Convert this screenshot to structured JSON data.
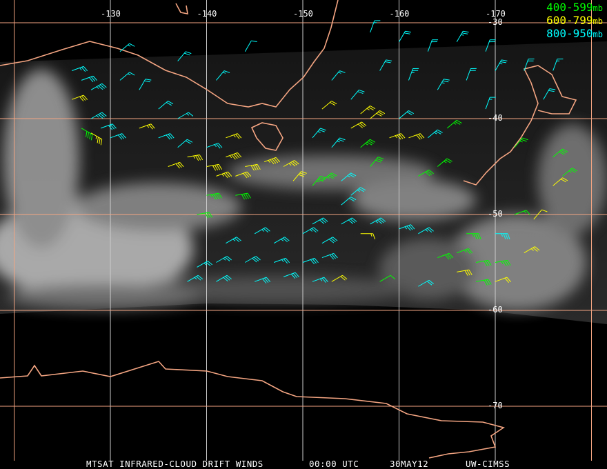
{
  "colors": {
    "grid": "#f4a582",
    "coast": "#f4a582",
    "level_400_599": "#00ff00",
    "level_600_799": "#ffff00",
    "level_800_950": "#00ffff",
    "text": "#ffffff"
  },
  "legend": [
    {
      "label": "400-599",
      "unit": "mb",
      "color": "#00ff00"
    },
    {
      "label": "600-799",
      "unit": "mb",
      "color": "#ffff00"
    },
    {
      "label": "800-950",
      "unit": "mb",
      "color": "#00ffff"
    }
  ],
  "longitude_labels": [
    "-130",
    "-140",
    "-150",
    "-160",
    "-170"
  ],
  "latitude_labels": [
    "-30",
    "-40",
    "-50",
    "-60",
    "-70"
  ],
  "caption": {
    "product": "MTSAT INFRARED-CLOUD DRIFT WINDS",
    "time": "00:00 UTC",
    "date": "30MAY12",
    "source": "UW-CIMSS"
  },
  "winds": [
    [
      -126,
      -35,
      "c",
      250,
      25
    ],
    [
      -127,
      -36,
      "c",
      250,
      30
    ],
    [
      -128,
      -37,
      "c",
      240,
      35
    ],
    [
      -126,
      -38,
      "y",
      250,
      30
    ],
    [
      -128,
      -40,
      "c",
      240,
      35
    ],
    [
      -127,
      -41,
      "g",
      300,
      40
    ],
    [
      -128,
      -41.5,
      "y",
      300,
      35
    ],
    [
      -130,
      -42,
      "c",
      250,
      30
    ],
    [
      -129,
      -41,
      "c",
      250,
      30
    ],
    [
      -131,
      -36,
      "c",
      230,
      15
    ],
    [
      -133,
      -37,
      "c",
      210,
      20
    ],
    [
      -135,
      -39,
      "c",
      230,
      20
    ],
    [
      -137,
      -40,
      "c",
      240,
      15
    ],
    [
      -133,
      -41,
      "y",
      250,
      25
    ],
    [
      -135,
      -42,
      "c",
      250,
      30
    ],
    [
      -131,
      -33,
      "c",
      230,
      15
    ],
    [
      -137,
      -34,
      "c",
      220,
      20
    ],
    [
      -141,
      -36,
      "c",
      220,
      15
    ],
    [
      -144,
      -33,
      "c",
      210,
      10
    ],
    [
      -136,
      -45,
      "y",
      250,
      30
    ],
    [
      -138,
      -44,
      "y",
      260,
      35
    ],
    [
      -140,
      -45,
      "y",
      260,
      40
    ],
    [
      -142,
      -44,
      "y",
      250,
      45
    ],
    [
      -144,
      -45,
      "y",
      260,
      40
    ],
    [
      -146,
      -44.5,
      "y",
      250,
      45
    ],
    [
      -148,
      -45,
      "y",
      240,
      35
    ],
    [
      -141,
      -46,
      "y",
      250,
      35
    ],
    [
      -143,
      -46,
      "y",
      250,
      30
    ],
    [
      -140,
      -48,
      "g",
      260,
      45
    ],
    [
      -143,
      -48,
      "g",
      260,
      40
    ],
    [
      -139,
      -50,
      "g",
      260,
      30
    ],
    [
      -137,
      -43,
      "c",
      230,
      20
    ],
    [
      -140,
      -43,
      "c",
      250,
      25
    ],
    [
      -142,
      -42,
      "y",
      250,
      25
    ],
    [
      -149,
      -46.5,
      "y",
      220,
      30
    ],
    [
      -151,
      -47,
      "g",
      220,
      35
    ],
    [
      -152,
      -46.5,
      "g",
      230,
      35
    ],
    [
      -154,
      -46.5,
      "c",
      230,
      25
    ],
    [
      -157,
      -45,
      "g",
      220,
      30
    ],
    [
      -156,
      -43,
      "g",
      230,
      35
    ],
    [
      -153,
      -43,
      "c",
      220,
      25
    ],
    [
      -151,
      -42,
      "c",
      220,
      25
    ],
    [
      -155,
      -41,
      "y",
      240,
      30
    ],
    [
      -157,
      -40,
      "y",
      230,
      30
    ],
    [
      -159,
      -42,
      "y",
      250,
      35
    ],
    [
      -161,
      -42,
      "y",
      250,
      30
    ],
    [
      -163,
      -42,
      "c",
      230,
      25
    ],
    [
      -165,
      -41,
      "g",
      230,
      25
    ],
    [
      -162,
      -46,
      "g",
      240,
      30
    ],
    [
      -164,
      -45,
      "g",
      230,
      25
    ],
    [
      -154,
      -49,
      "c",
      230,
      20
    ],
    [
      -155,
      -48,
      "c",
      230,
      25
    ],
    [
      -151,
      -51,
      "c",
      240,
      30
    ],
    [
      -154,
      -51,
      "c",
      240,
      30
    ],
    [
      -157,
      -51,
      "c",
      240,
      35
    ],
    [
      -160,
      -51.5,
      "c",
      250,
      35
    ],
    [
      -162,
      -52,
      "c",
      240,
      25
    ],
    [
      -150,
      -52,
      "c",
      240,
      25
    ],
    [
      -147,
      -53,
      "c",
      240,
      25
    ],
    [
      -145,
      -52,
      "c",
      240,
      25
    ],
    [
      -142,
      -53,
      "c",
      240,
      25
    ],
    [
      -152,
      -53,
      "c",
      240,
      30
    ],
    [
      -156,
      -52,
      "y",
      270,
      15
    ],
    [
      -139,
      -55.5,
      "c",
      240,
      25
    ],
    [
      -141,
      -55,
      "c",
      240,
      25
    ],
    [
      -144,
      -55,
      "c",
      240,
      30
    ],
    [
      -147,
      -55,
      "c",
      250,
      25
    ],
    [
      -150,
      -55,
      "c",
      250,
      30
    ],
    [
      -152,
      -54.5,
      "c",
      250,
      30
    ],
    [
      -138,
      -57,
      "c",
      240,
      25
    ],
    [
      -141,
      -57,
      "c",
      240,
      30
    ],
    [
      -145,
      -57,
      "c",
      250,
      30
    ],
    [
      -148,
      -56.5,
      "c",
      250,
      30
    ],
    [
      -151,
      -57,
      "c",
      250,
      25
    ],
    [
      -153,
      -57,
      "y",
      240,
      20
    ],
    [
      -158,
      -57,
      "g",
      240,
      10
    ],
    [
      -162,
      -57.5,
      "c",
      240,
      20
    ],
    [
      -164,
      -54.5,
      "g",
      250,
      30
    ],
    [
      -166,
      -54,
      "g",
      250,
      25
    ],
    [
      -167,
      -52,
      "g",
      270,
      35
    ],
    [
      -170,
      -52,
      "c",
      270,
      35
    ],
    [
      -168,
      -55,
      "g",
      260,
      30
    ],
    [
      -170,
      -55,
      "g",
      260,
      35
    ],
    [
      -166,
      -56,
      "y",
      260,
      30
    ],
    [
      -168,
      -57,
      "g",
      260,
      30
    ],
    [
      -170,
      -57,
      "y",
      250,
      20
    ],
    [
      -173,
      -54,
      "y",
      240,
      25
    ],
    [
      -172,
      -50,
      "g",
      250,
      15
    ],
    [
      -174,
      -50.5,
      "y",
      220,
      10
    ],
    [
      -172,
      -43,
      "g",
      220,
      25
    ],
    [
      -176,
      -44,
      "g",
      230,
      30
    ],
    [
      -177,
      -46,
      "g",
      230,
      25
    ],
    [
      -176,
      -47,
      "y",
      230,
      20
    ],
    [
      -157,
      -31,
      "c",
      200,
      15
    ],
    [
      -160,
      -32,
      "c",
      210,
      20
    ],
    [
      -163,
      -33,
      "c",
      200,
      20
    ],
    [
      -166,
      -32,
      "c",
      210,
      25
    ],
    [
      -169,
      -33,
      "c",
      200,
      20
    ],
    [
      -158,
      -35,
      "c",
      210,
      20
    ],
    [
      -161,
      -36,
      "c",
      200,
      25
    ],
    [
      -164,
      -37,
      "c",
      210,
      25
    ],
    [
      -167,
      -36,
      "c",
      200,
      20
    ],
    [
      -170,
      -35,
      "c",
      210,
      25
    ],
    [
      -173,
      -35,
      "c",
      200,
      20
    ],
    [
      -175,
      -38,
      "c",
      210,
      20
    ],
    [
      -155,
      -38,
      "c",
      220,
      20
    ],
    [
      -153,
      -36,
      "c",
      220,
      15
    ],
    [
      -152,
      -39,
      "y",
      230,
      20
    ],
    [
      -156,
      -39.5,
      "y",
      230,
      25
    ],
    [
      -160,
      -40,
      "c",
      230,
      20
    ],
    [
      -169,
      -39,
      "c",
      200,
      15
    ],
    [
      -176,
      -35,
      "c",
      200,
      15
    ]
  ]
}
